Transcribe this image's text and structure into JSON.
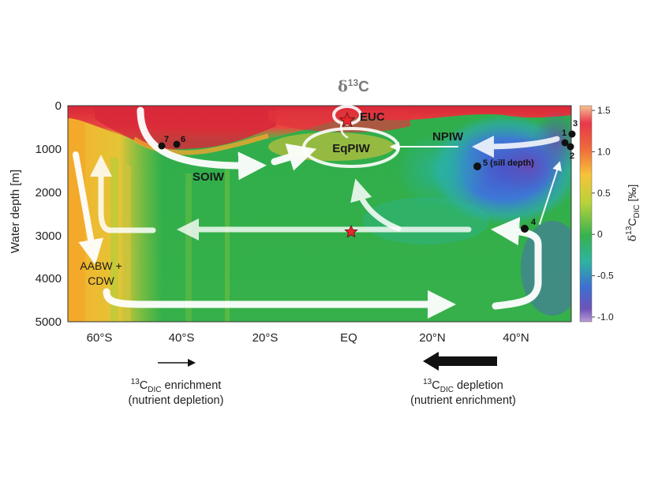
{
  "title_prefix": "δ",
  "title_sup": "13",
  "title_main": "C",
  "y_axis_label": "Water depth [m]",
  "y_ticks": [
    "0",
    "1000",
    "2000",
    "3000",
    "4000",
    "5000"
  ],
  "x_ticks": [
    "60°S",
    "40°S",
    "20°S",
    "EQ",
    "20°N",
    "40°N"
  ],
  "colorbar": {
    "label_prefix": "δ",
    "label_sup": "13",
    "label_main": "C",
    "label_sub": "DIC",
    "label_unit": " [‰]",
    "ticks": [
      "1.5",
      "1.0",
      "0.5",
      "0",
      "-0.5",
      "-1.0"
    ],
    "values": [
      1.5,
      1.0,
      0.5,
      0,
      -0.5,
      -1.0
    ]
  },
  "water_masses": {
    "euc": "EUC",
    "eqpiw": "EqPIW",
    "npiw": "NPIW",
    "soiw": "SOIW",
    "aabw_line1": "AABW +",
    "aabw_line2": "CDW"
  },
  "sites": [
    {
      "id": "1",
      "label": "1"
    },
    {
      "id": "2",
      "label": "2"
    },
    {
      "id": "3",
      "label": "3"
    },
    {
      "id": "4",
      "label": "4"
    },
    {
      "id": "5",
      "label": "5 (sill depth)"
    },
    {
      "id": "6",
      "label": "6"
    },
    {
      "id": "7",
      "label": "7"
    }
  ],
  "annotations": {
    "left_sup": "13",
    "left_main": "C",
    "left_sub": "DIC",
    "left_line1_rest": " enrichment",
    "left_line2": "(nutrient depletion)",
    "right_sup": "13",
    "right_main": "C",
    "right_sub": "DIC",
    "right_line1_rest": " depletion",
    "right_line2": "(nutrient enrichment)"
  },
  "colors": {
    "high": "#d7263a",
    "mid_high": "#f5a623",
    "mid": "#3fb34f",
    "low": "#4b6fd6",
    "lowest": "#7b4fb8",
    "arrow": "#ffffff",
    "star": "#e8262b"
  }
}
